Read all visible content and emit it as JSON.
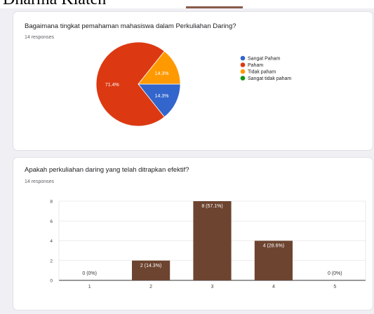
{
  "page": {
    "title": "Dharma Klaten"
  },
  "chart_data": [
    {
      "type": "pie",
      "title": "Bagaimana tingkat pemahaman mahasiswa dalam Perkuliahan Daring?",
      "responses_label": "14 responses",
      "legend_position": "right",
      "slices": [
        {
          "label": "Sangat Paham",
          "value": 14.3,
          "display": "14.3%",
          "color": "#3366cc"
        },
        {
          "label": "Paham",
          "value": 71.4,
          "display": "71.4%",
          "color": "#dc3912"
        },
        {
          "label": "Tidak paham",
          "value": 14.3,
          "display": "14.3%",
          "color": "#ff9900"
        },
        {
          "label": "Sangat tidak paham",
          "value": 0,
          "display": "",
          "color": "#109618"
        }
      ]
    },
    {
      "type": "bar",
      "title": "Apakah perkuliahan daring yang telah ditrapkan efektif?",
      "responses_label": "14 responses",
      "categories": [
        "1",
        "2",
        "3",
        "4",
        "5"
      ],
      "values": [
        0,
        2,
        8,
        4,
        0
      ],
      "value_labels": [
        "0 (0%)",
        "2 (14.3%)",
        "8 (57.1%)",
        "4 (28.6%)",
        "0 (0%)"
      ],
      "y_ticks": [
        0,
        2,
        4,
        6,
        8
      ],
      "ylim": [
        0,
        8
      ],
      "grid": true,
      "bar_color": "#6d4430"
    }
  ]
}
